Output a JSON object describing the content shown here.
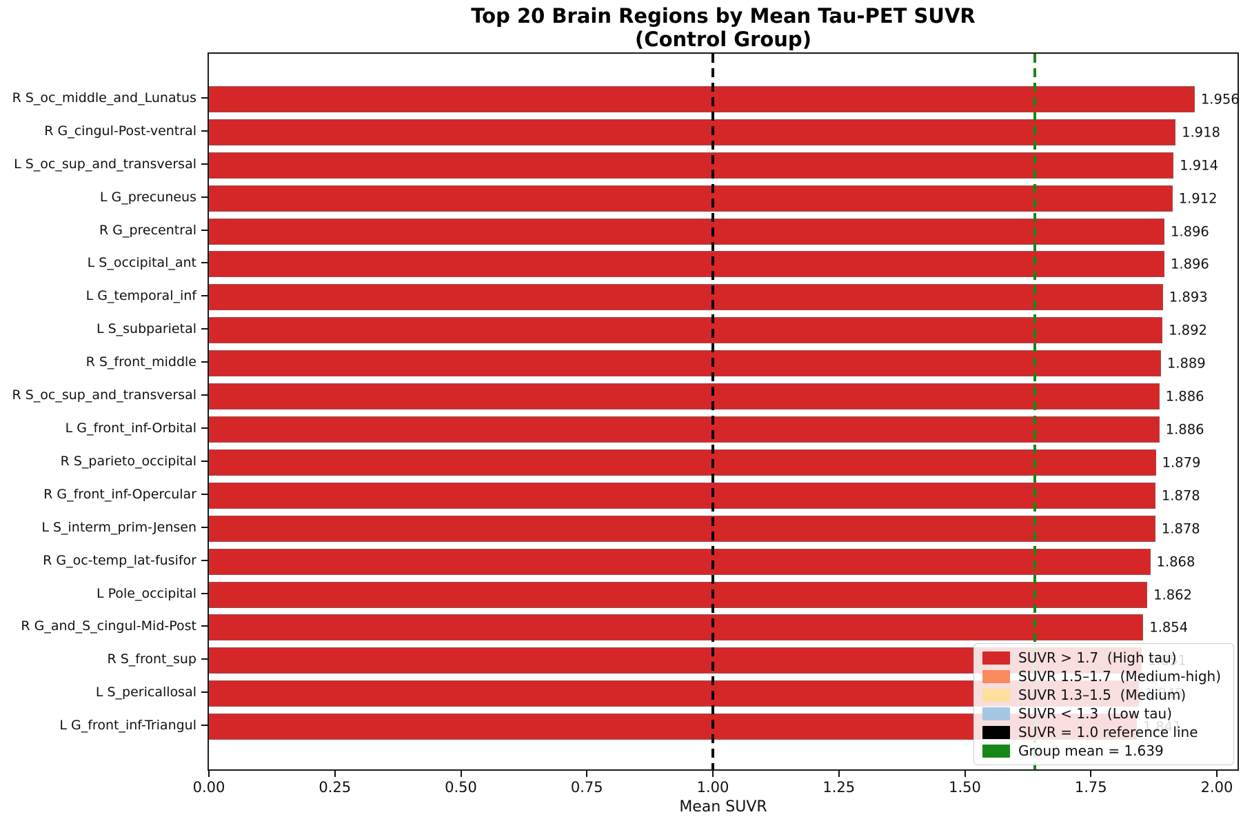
{
  "chart": {
    "title_line1": "Top 20 Brain Regions by Mean Tau-PET SUVR",
    "title_line2": "(Control Group)",
    "xlabel": "Mean SUVR"
  },
  "chart_data": {
    "type": "bar",
    "orientation": "horizontal",
    "title": "Top 20 Brain Regions by Mean Tau-PET SUVR\n(Control Group)",
    "xlabel": "Mean SUVR",
    "ylabel": "",
    "xlim": [
      0,
      2.041
    ],
    "xticks": [
      0.0,
      0.25,
      0.5,
      0.75,
      1.0,
      1.25,
      1.5,
      1.75,
      2.0
    ],
    "grid": false,
    "bar_color": "#d62728",
    "value_label_decimals": 3,
    "categories": [
      "R S_oc_middle_and_Lunatus",
      "R G_cingul-Post-ventral",
      "L S_oc_sup_and_transversal",
      "L G_precuneus",
      "R G_precentral",
      "L S_occipital_ant",
      "L G_temporal_inf",
      "L S_subparietal",
      "R S_front_middle",
      "R S_oc_sup_and_transversal",
      "L G_front_inf-Orbital",
      "R S_parieto_occipital",
      "R G_front_inf-Opercular",
      "L S_interm_prim-Jensen",
      "R G_oc-temp_lat-fusifor",
      "L Pole_occipital",
      "R G_and_S_cingul-Mid-Post",
      "R S_front_sup",
      "L S_pericallosal",
      "L G_front_inf-Triangul"
    ],
    "values": [
      1.956,
      1.918,
      1.914,
      1.912,
      1.896,
      1.896,
      1.893,
      1.892,
      1.889,
      1.886,
      1.886,
      1.879,
      1.878,
      1.878,
      1.868,
      1.862,
      1.854,
      1.851,
      1.845,
      1.841
    ],
    "reference_lines": [
      {
        "x": 1.0,
        "color": "#000000",
        "style": "dashed",
        "name": "suvr-1.0-reference-line"
      },
      {
        "x": 1.639,
        "color": "#178717",
        "style": "dashed",
        "name": "group-mean-line"
      }
    ],
    "legend": {
      "position": "lower right",
      "items": [
        {
          "label": "SUVR > 1.7  (High tau)",
          "color": "#d62728"
        },
        {
          "label": "SUVR 1.5–1.7  (Medium-high)",
          "color": "#fa8a5e"
        },
        {
          "label": "SUVR 1.3–1.5  (Medium)",
          "color": "#fddf9e"
        },
        {
          "label": "SUVR < 1.3  (Low tau)",
          "color": "#a4c8e1"
        },
        {
          "label": "SUVR = 1.0 reference line",
          "color": "#000000"
        },
        {
          "label": "Group mean = 1.639",
          "color": "#178717"
        }
      ]
    }
  }
}
